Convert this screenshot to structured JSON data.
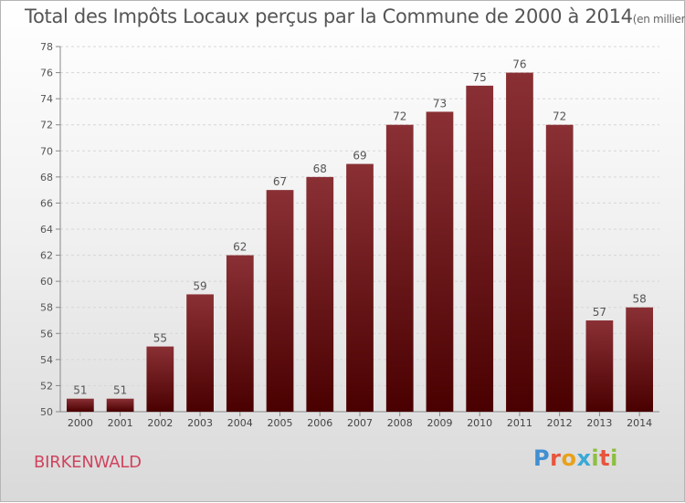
{
  "chart_data": {
    "type": "bar",
    "title": "Total des Impôts Locaux perçus par la Commune de 2000 à 2014",
    "title_unit": "(en milliers d'€)",
    "categories": [
      "2000",
      "2001",
      "2002",
      "2003",
      "2004",
      "2005",
      "2006",
      "2007",
      "2008",
      "2009",
      "2010",
      "2011",
      "2012",
      "2013",
      "2014"
    ],
    "values": [
      51,
      51,
      55,
      59,
      62,
      67,
      68,
      69,
      72,
      73,
      75,
      76,
      72,
      57,
      58
    ],
    "ylim": [
      50,
      78
    ],
    "yticks": [
      50,
      52,
      54,
      56,
      58,
      60,
      62,
      64,
      66,
      68,
      70,
      72,
      74,
      76,
      78
    ],
    "grid": true,
    "bar_color_top": "#8a3035",
    "bar_color_bottom": "#4a0000",
    "grid_color": "#d6d6d6"
  },
  "footer": {
    "commune": "BIRKENWALD",
    "logo_letters": [
      "P",
      "r",
      "o",
      "x",
      "i",
      "t",
      "i"
    ],
    "logo_colors": [
      "#3f8fd2",
      "#e8553d",
      "#e8a11a",
      "#3aa9d6",
      "#8cbf3f",
      "#e8553d",
      "#8cbf3f"
    ]
  }
}
